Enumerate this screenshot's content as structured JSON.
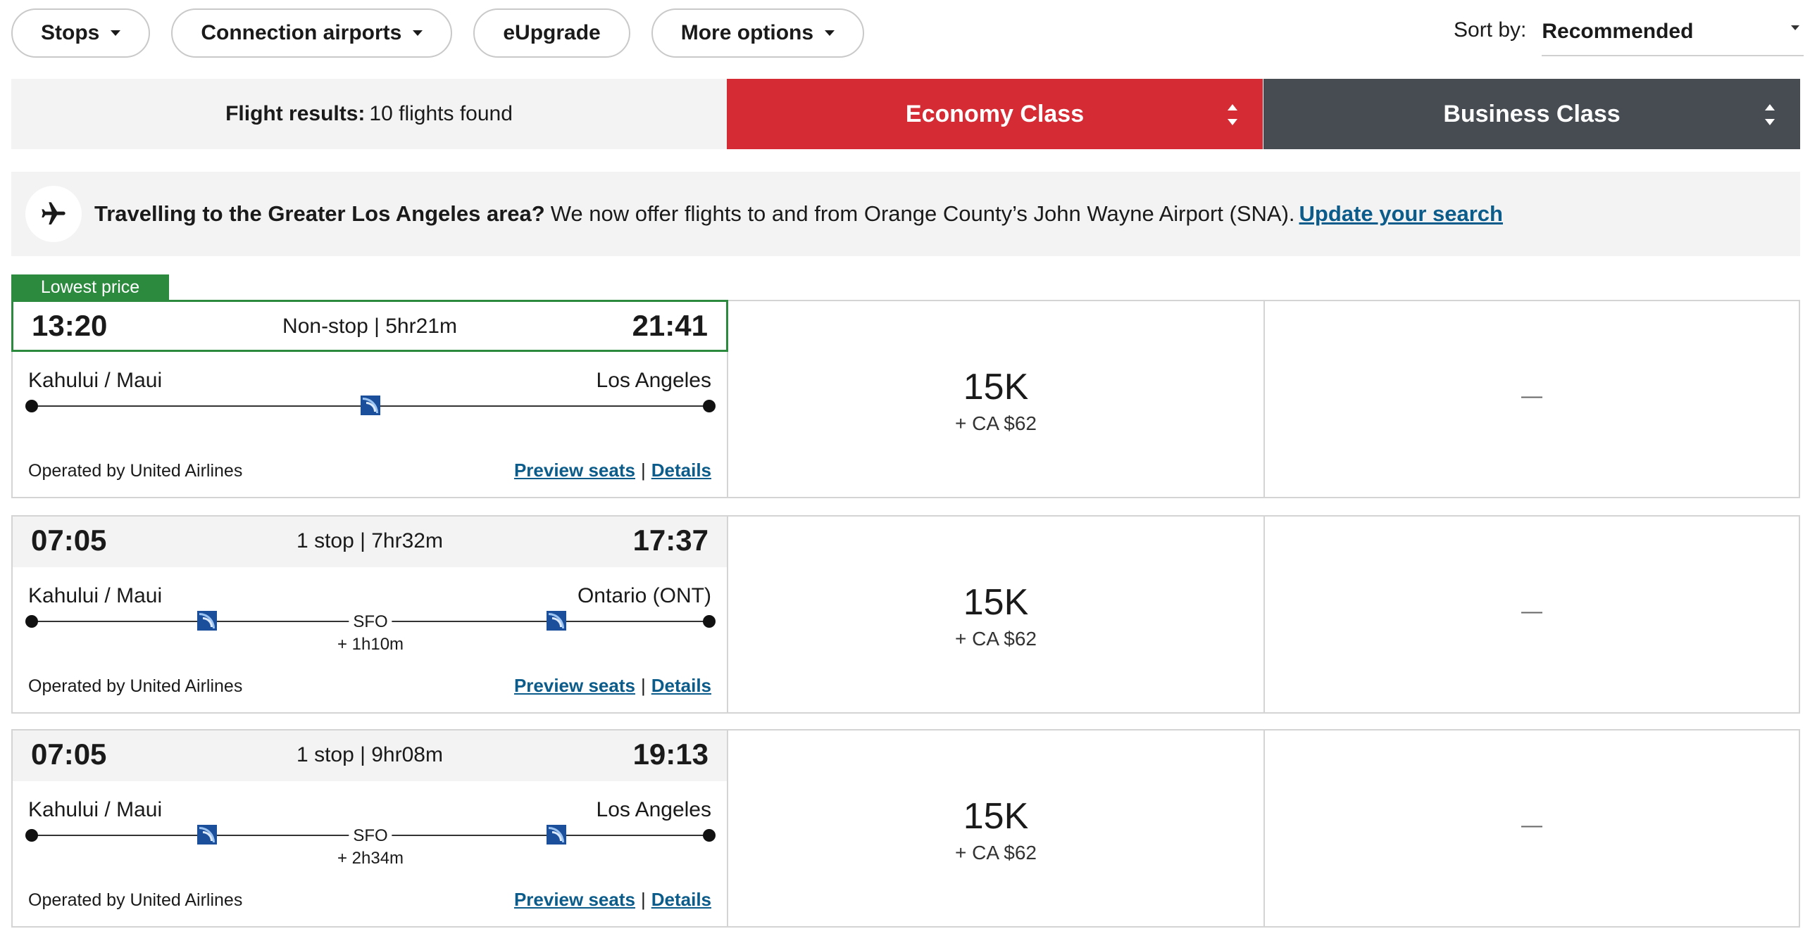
{
  "filters": {
    "stops": "Stops",
    "connection_airports": "Connection airports",
    "eupgrade": "eUpgrade",
    "more_options": "More options"
  },
  "sort": {
    "label": "Sort by:",
    "value": "Recommended"
  },
  "results": {
    "label": "Flight results:",
    "count": "10 flights found"
  },
  "classes": {
    "economy": "Economy Class",
    "business": "Business Class"
  },
  "banner": {
    "bold": "Travelling to the Greater Los Angeles area?",
    "text": "We now offer flights to and from Orange County’s John Wayne Airport (SNA).",
    "link": "Update your search"
  },
  "lowest_tag": "Lowest price",
  "flights": [
    {
      "dep": "13:20",
      "info": "Non-stop | 5hr21m",
      "arr": "21:41",
      "from": "Kahului / Maui",
      "to": "Los Angeles",
      "operated": "Operated by United Airlines",
      "preview": "Preview seats",
      "sep": "|",
      "details": "Details",
      "economy_pts": "15K",
      "economy_cash": "+ CA $62",
      "business": "—"
    },
    {
      "dep": "07:05",
      "info": "1 stop | 7hr32m",
      "arr": "17:37",
      "from": "Kahului / Maui",
      "to": "Ontario (ONT)",
      "stop_code": "SFO",
      "layover": "+ 1h10m",
      "operated": "Operated by United Airlines",
      "preview": "Preview seats",
      "sep": "|",
      "details": "Details",
      "economy_pts": "15K",
      "economy_cash": "+ CA $62",
      "business": "—"
    },
    {
      "dep": "07:05",
      "info": "1 stop | 9hr08m",
      "arr": "19:13",
      "from": "Kahului / Maui",
      "to": "Los Angeles",
      "stop_code": "SFO",
      "layover": "+ 2h34m",
      "operated": "Operated by United Airlines",
      "preview": "Preview seats",
      "sep": "|",
      "details": "Details",
      "economy_pts": "15K",
      "economy_cash": "+ CA $62",
      "business": "—"
    }
  ],
  "colors": {
    "economy": "#d52b34",
    "business": "#474c52",
    "lowest": "#2b8a3e",
    "link": "#0b5c8a"
  }
}
